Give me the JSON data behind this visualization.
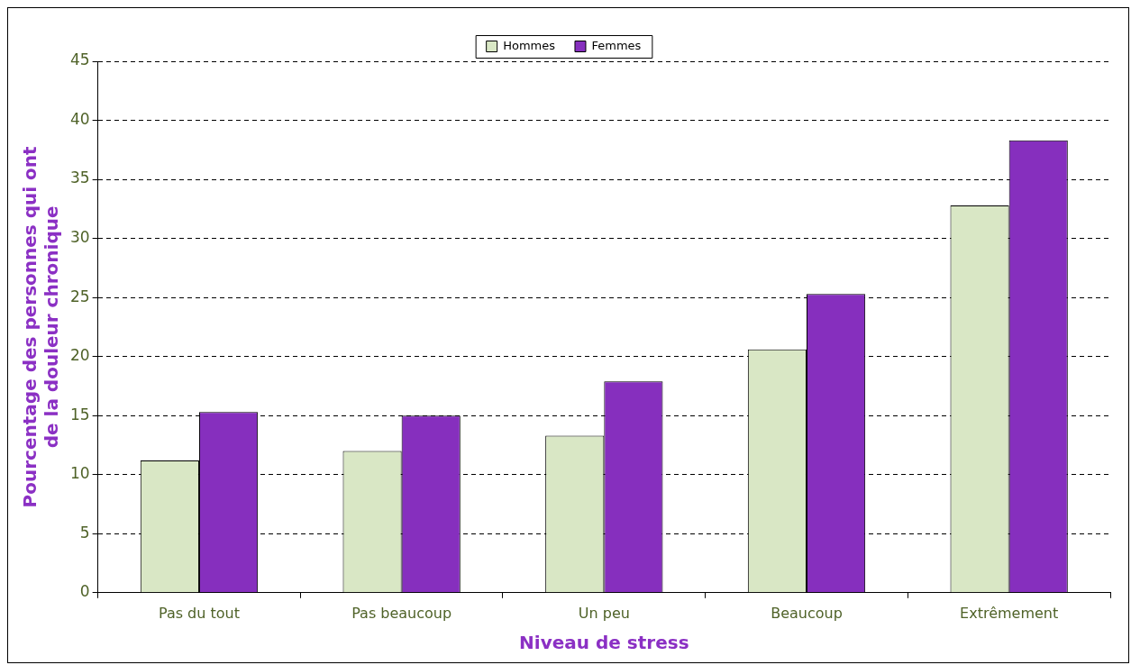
{
  "chart_data": {
    "type": "bar",
    "xlabel": "Niveau de stress",
    "ylabel": "Pourcentage des personnes qui ont de la douleur chronique",
    "categories": [
      "Pas du tout",
      "Pas beaucoup",
      "Un peu",
      "Beaucoup",
      "Extrêmement"
    ],
    "series": [
      {
        "name": "Hommes",
        "color": "#d9e7c5",
        "values": [
          11.2,
          12.0,
          13.3,
          20.6,
          32.8
        ]
      },
      {
        "name": "Femmes",
        "color": "#862fbe",
        "values": [
          15.3,
          15.0,
          17.9,
          25.3,
          38.3
        ]
      }
    ],
    "ylim": [
      0,
      45
    ],
    "yticks": [
      0,
      5,
      10,
      15,
      20,
      25,
      30,
      35,
      40,
      45
    ],
    "grid": "y",
    "legend": "top"
  }
}
